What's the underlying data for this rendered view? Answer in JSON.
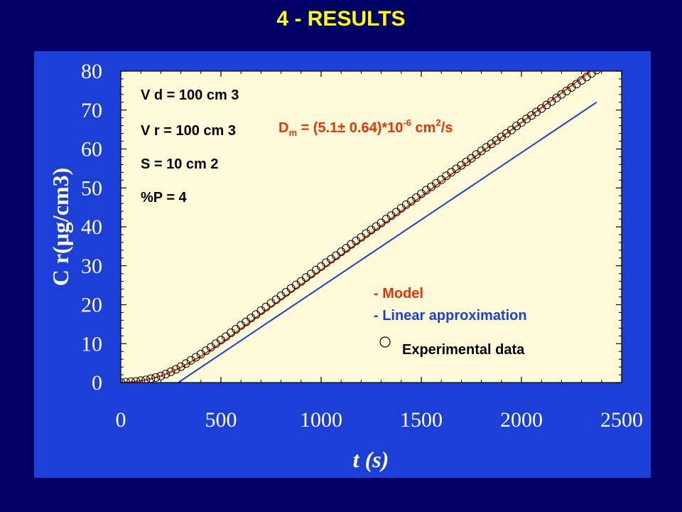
{
  "slide_title": "4 - RESULTS",
  "chart_data": {
    "type": "scatter",
    "xlabel": "t (s)",
    "ylabel": "C r(μg/cm3)",
    "xlim": [
      0,
      2500
    ],
    "ylim": [
      0,
      80
    ],
    "x_ticks": [
      0,
      500,
      1000,
      1500,
      2000,
      2500
    ],
    "y_ticks": [
      0,
      10,
      20,
      30,
      40,
      50,
      60,
      70,
      80
    ],
    "params": {
      "vd": "V d = 100 cm 3",
      "vr": "V r = 100 cm 3",
      "s": "S = 10 cm 2",
      "p": "%P = 4"
    },
    "dm": {
      "main": "D",
      "sub": "m",
      "mid": " = (5.1± 0.64)*10",
      "exp": "-6",
      "tail": " cm",
      "exp2": "2",
      "end": "/s"
    },
    "legend": {
      "model": "- Model",
      "linear": "- Linear approximation",
      "experimental": "Experimental data"
    },
    "colors": {
      "model": "#e8320a",
      "linear": "#1c3fd8",
      "points": "#000000",
      "plot_bg": "#fffbd9",
      "panel": "#1c3fd8"
    },
    "series": [
      {
        "name": "Experimental data",
        "kind": "points",
        "x": [
          0,
          25,
          50,
          75,
          100,
          125,
          150,
          175,
          200,
          225,
          250,
          275,
          300,
          325,
          350,
          375,
          400,
          425,
          450,
          475,
          500,
          525,
          550,
          575,
          600,
          625,
          650,
          675,
          700,
          725,
          750,
          775,
          800,
          825,
          850,
          875,
          900,
          925,
          950,
          975,
          1000,
          1025,
          1050,
          1075,
          1100,
          1125,
          1150,
          1175,
          1200,
          1225,
          1250,
          1275,
          1300,
          1325,
          1350,
          1375,
          1400,
          1425,
          1450,
          1475,
          1500,
          1525,
          1550,
          1575,
          1600,
          1625,
          1650,
          1675,
          1700,
          1725,
          1750,
          1775,
          1800,
          1825,
          1850,
          1875,
          1900,
          1925,
          1950,
          1975,
          2000,
          2025,
          2050,
          2075,
          2100,
          2125,
          2150,
          2175,
          2200,
          2225,
          2250,
          2275,
          2300,
          2325,
          2350,
          2375
        ],
        "y": [
          0.0,
          0.1,
          0.2,
          0.3,
          0.5,
          0.7,
          1.0,
          1.3,
          1.7,
          2.2,
          2.8,
          3.4,
          4.1,
          4.9,
          5.7,
          6.5,
          7.3,
          8.2,
          9.1,
          10.0,
          10.9,
          11.8,
          12.8,
          13.7,
          14.7,
          15.6,
          16.6,
          17.5,
          18.5,
          19.4,
          20.4,
          21.3,
          22.3,
          23.2,
          24.2,
          25.1,
          26.0,
          27.0,
          27.9,
          28.9,
          29.8,
          30.8,
          31.7,
          32.6,
          33.6,
          34.5,
          35.5,
          36.4,
          37.3,
          38.3,
          39.2,
          40.1,
          41.0,
          42.0,
          42.9,
          43.8,
          44.8,
          45.7,
          46.6,
          47.5,
          48.5,
          49.4,
          50.3,
          51.2,
          52.1,
          53.1,
          54.0,
          54.9,
          55.8,
          56.7,
          57.6,
          58.6,
          59.5,
          60.4,
          61.3,
          62.2,
          63.1,
          64.0,
          64.9,
          65.9,
          66.8,
          67.7,
          68.6,
          69.5,
          70.4,
          71.3,
          72.2,
          73.1,
          74.0,
          74.9,
          75.8,
          76.7,
          77.6,
          78.5,
          79.4,
          80.3
        ]
      },
      {
        "name": "Model",
        "kind": "line",
        "x": [
          0,
          50,
          100,
          150,
          200,
          250,
          300,
          350,
          400,
          450,
          500,
          600,
          700,
          800,
          1000,
          1200,
          1400,
          1600,
          1800,
          2000,
          2200,
          2375
        ],
        "y": [
          0.0,
          0.15,
          0.45,
          0.95,
          1.7,
          2.7,
          3.9,
          5.3,
          6.8,
          8.45,
          10.1,
          13.8,
          17.6,
          21.3,
          28.9,
          36.5,
          44.0,
          51.6,
          59.2,
          66.8,
          74.4,
          81.1
        ]
      },
      {
        "name": "Linear approximation",
        "kind": "line",
        "x": [
          240,
          2375
        ],
        "y": [
          -1.6,
          72.0
        ]
      }
    ]
  }
}
